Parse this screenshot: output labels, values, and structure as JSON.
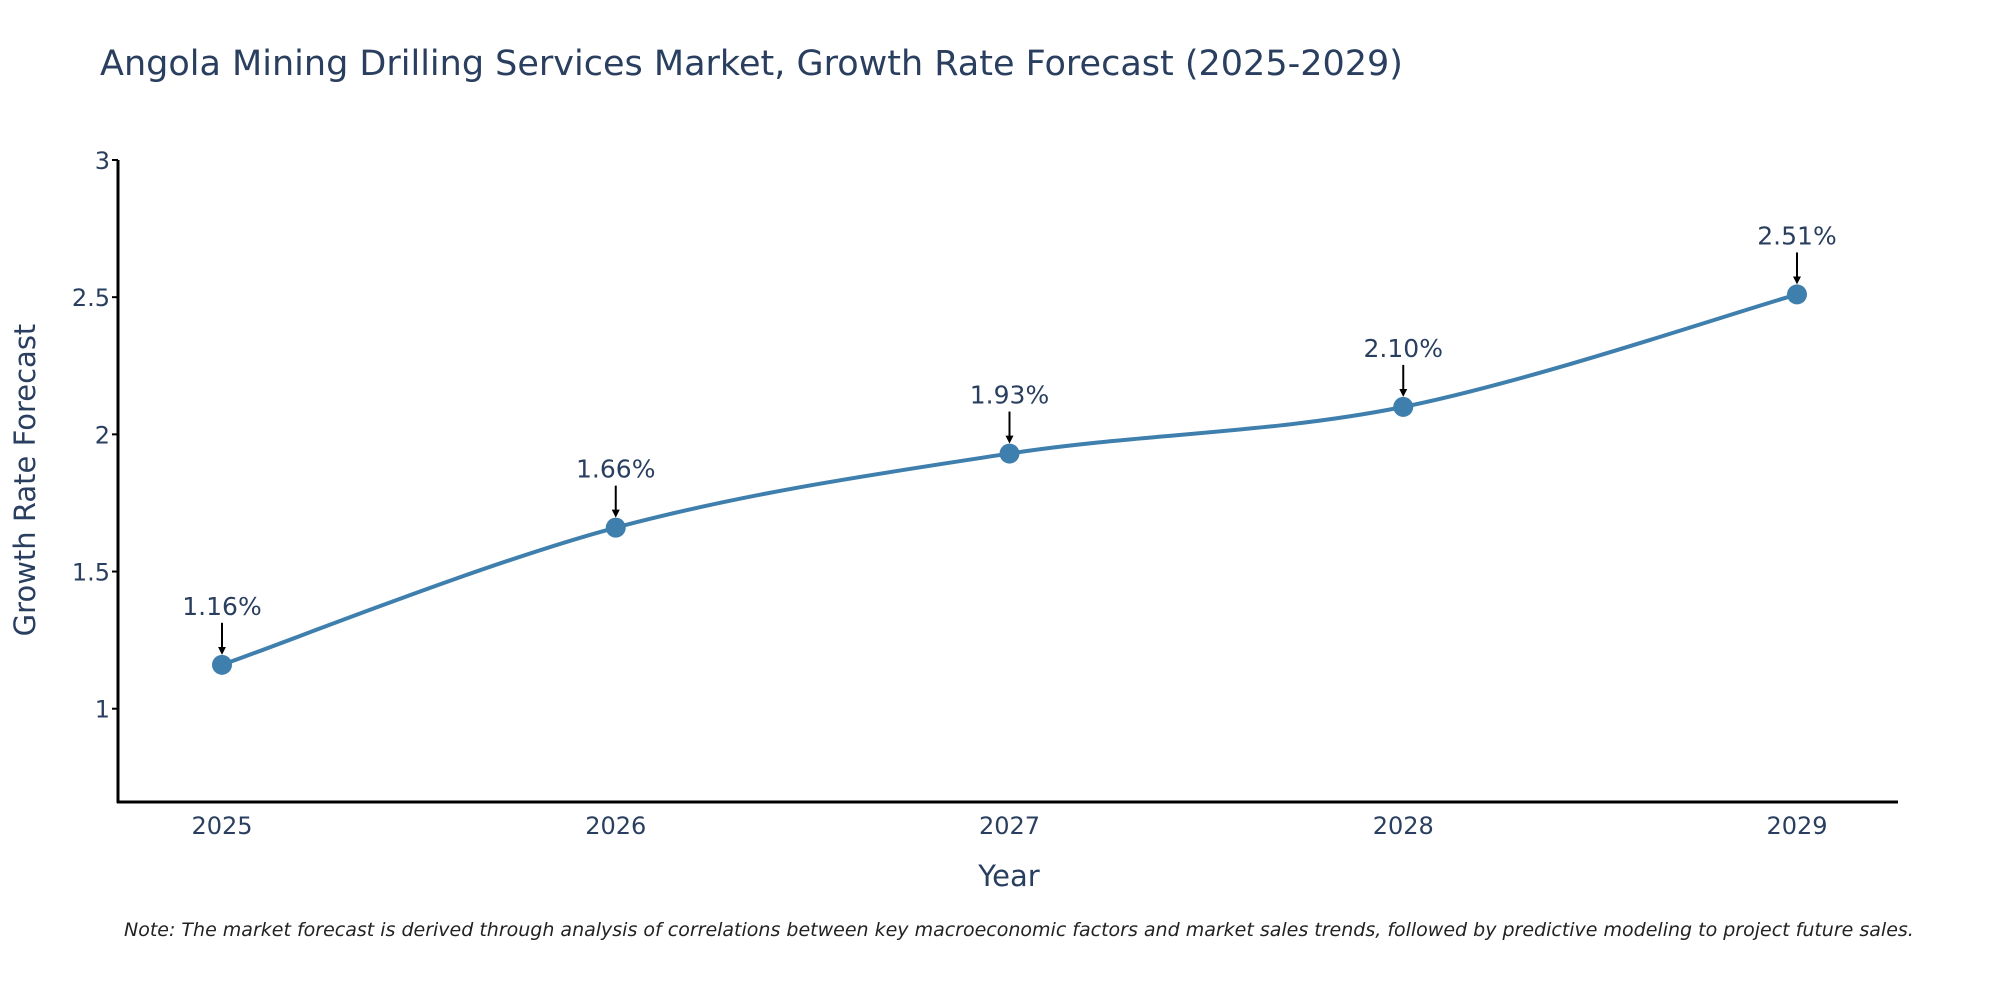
{
  "chart_data": {
    "type": "line",
    "title": "Angola Mining Drilling Services Market, Growth Rate Forecast (2025-2029)",
    "xlabel": "Year",
    "ylabel": "Growth Rate Forecast",
    "categories": [
      "2025",
      "2026",
      "2027",
      "2028",
      "2029"
    ],
    "series": [
      {
        "name": "Growth Rate Forecast",
        "values": [
          1.16,
          1.66,
          1.93,
          2.1,
          2.51
        ]
      }
    ],
    "data_labels": [
      "1.16%",
      "1.66%",
      "1.93%",
      "2.10%",
      "2.51%"
    ],
    "ylim": [
      0.66,
      3
    ],
    "yticks": [
      1,
      1.5,
      2,
      2.5,
      3
    ],
    "ytick_labels": [
      "1",
      "1.5",
      "2",
      "2.5",
      "3"
    ],
    "grid": false,
    "line_color": "#3f7fad",
    "axis_color": "#000000"
  },
  "footnote": "Note: The market forecast is derived through analysis of correlations between key macroeconomic factors and market sales trends, followed by predictive modeling to project future sales."
}
